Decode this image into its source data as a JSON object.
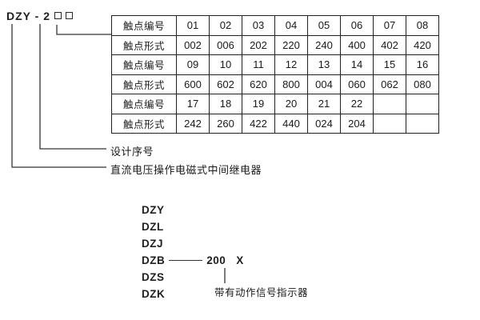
{
  "model_code": {
    "text": "DZY - 2"
  },
  "contact_table": {
    "rows": [
      {
        "label": "触点编号",
        "cells": [
          "01",
          "02",
          "03",
          "04",
          "05",
          "06",
          "07",
          "08"
        ]
      },
      {
        "label": "触点形式",
        "cells": [
          "002",
          "006",
          "202",
          "220",
          "240",
          "400",
          "402",
          "420"
        ]
      },
      {
        "label": "触点编号",
        "cells": [
          "09",
          "10",
          "11",
          "12",
          "13",
          "14",
          "15",
          "16"
        ]
      },
      {
        "label": "触点形式",
        "cells": [
          "600",
          "602",
          "620",
          "800",
          "004",
          "060",
          "062",
          "080"
        ]
      },
      {
        "label": "触点编号",
        "cells": [
          "17",
          "18",
          "19",
          "20",
          "21",
          "22",
          "",
          ""
        ]
      },
      {
        "label": "触点形式",
        "cells": [
          "242",
          "260",
          "422",
          "440",
          "024",
          "204",
          "",
          ""
        ]
      }
    ]
  },
  "callouts": {
    "design_serial_label": "设计序号",
    "relay_type_label": "直流电压操作电磁式中间继电器"
  },
  "model_series": {
    "items": [
      "DZY",
      "DZL",
      "DZJ",
      "DZB",
      "DZS",
      "DZK"
    ],
    "dzb_value": "200",
    "dzb_suffix": "X",
    "indicator_note": "带有动作信号指示器"
  },
  "colors": {
    "background": "#ffffff",
    "text": "#1a1a1a",
    "line": "#333333",
    "table_border": "#222222"
  }
}
